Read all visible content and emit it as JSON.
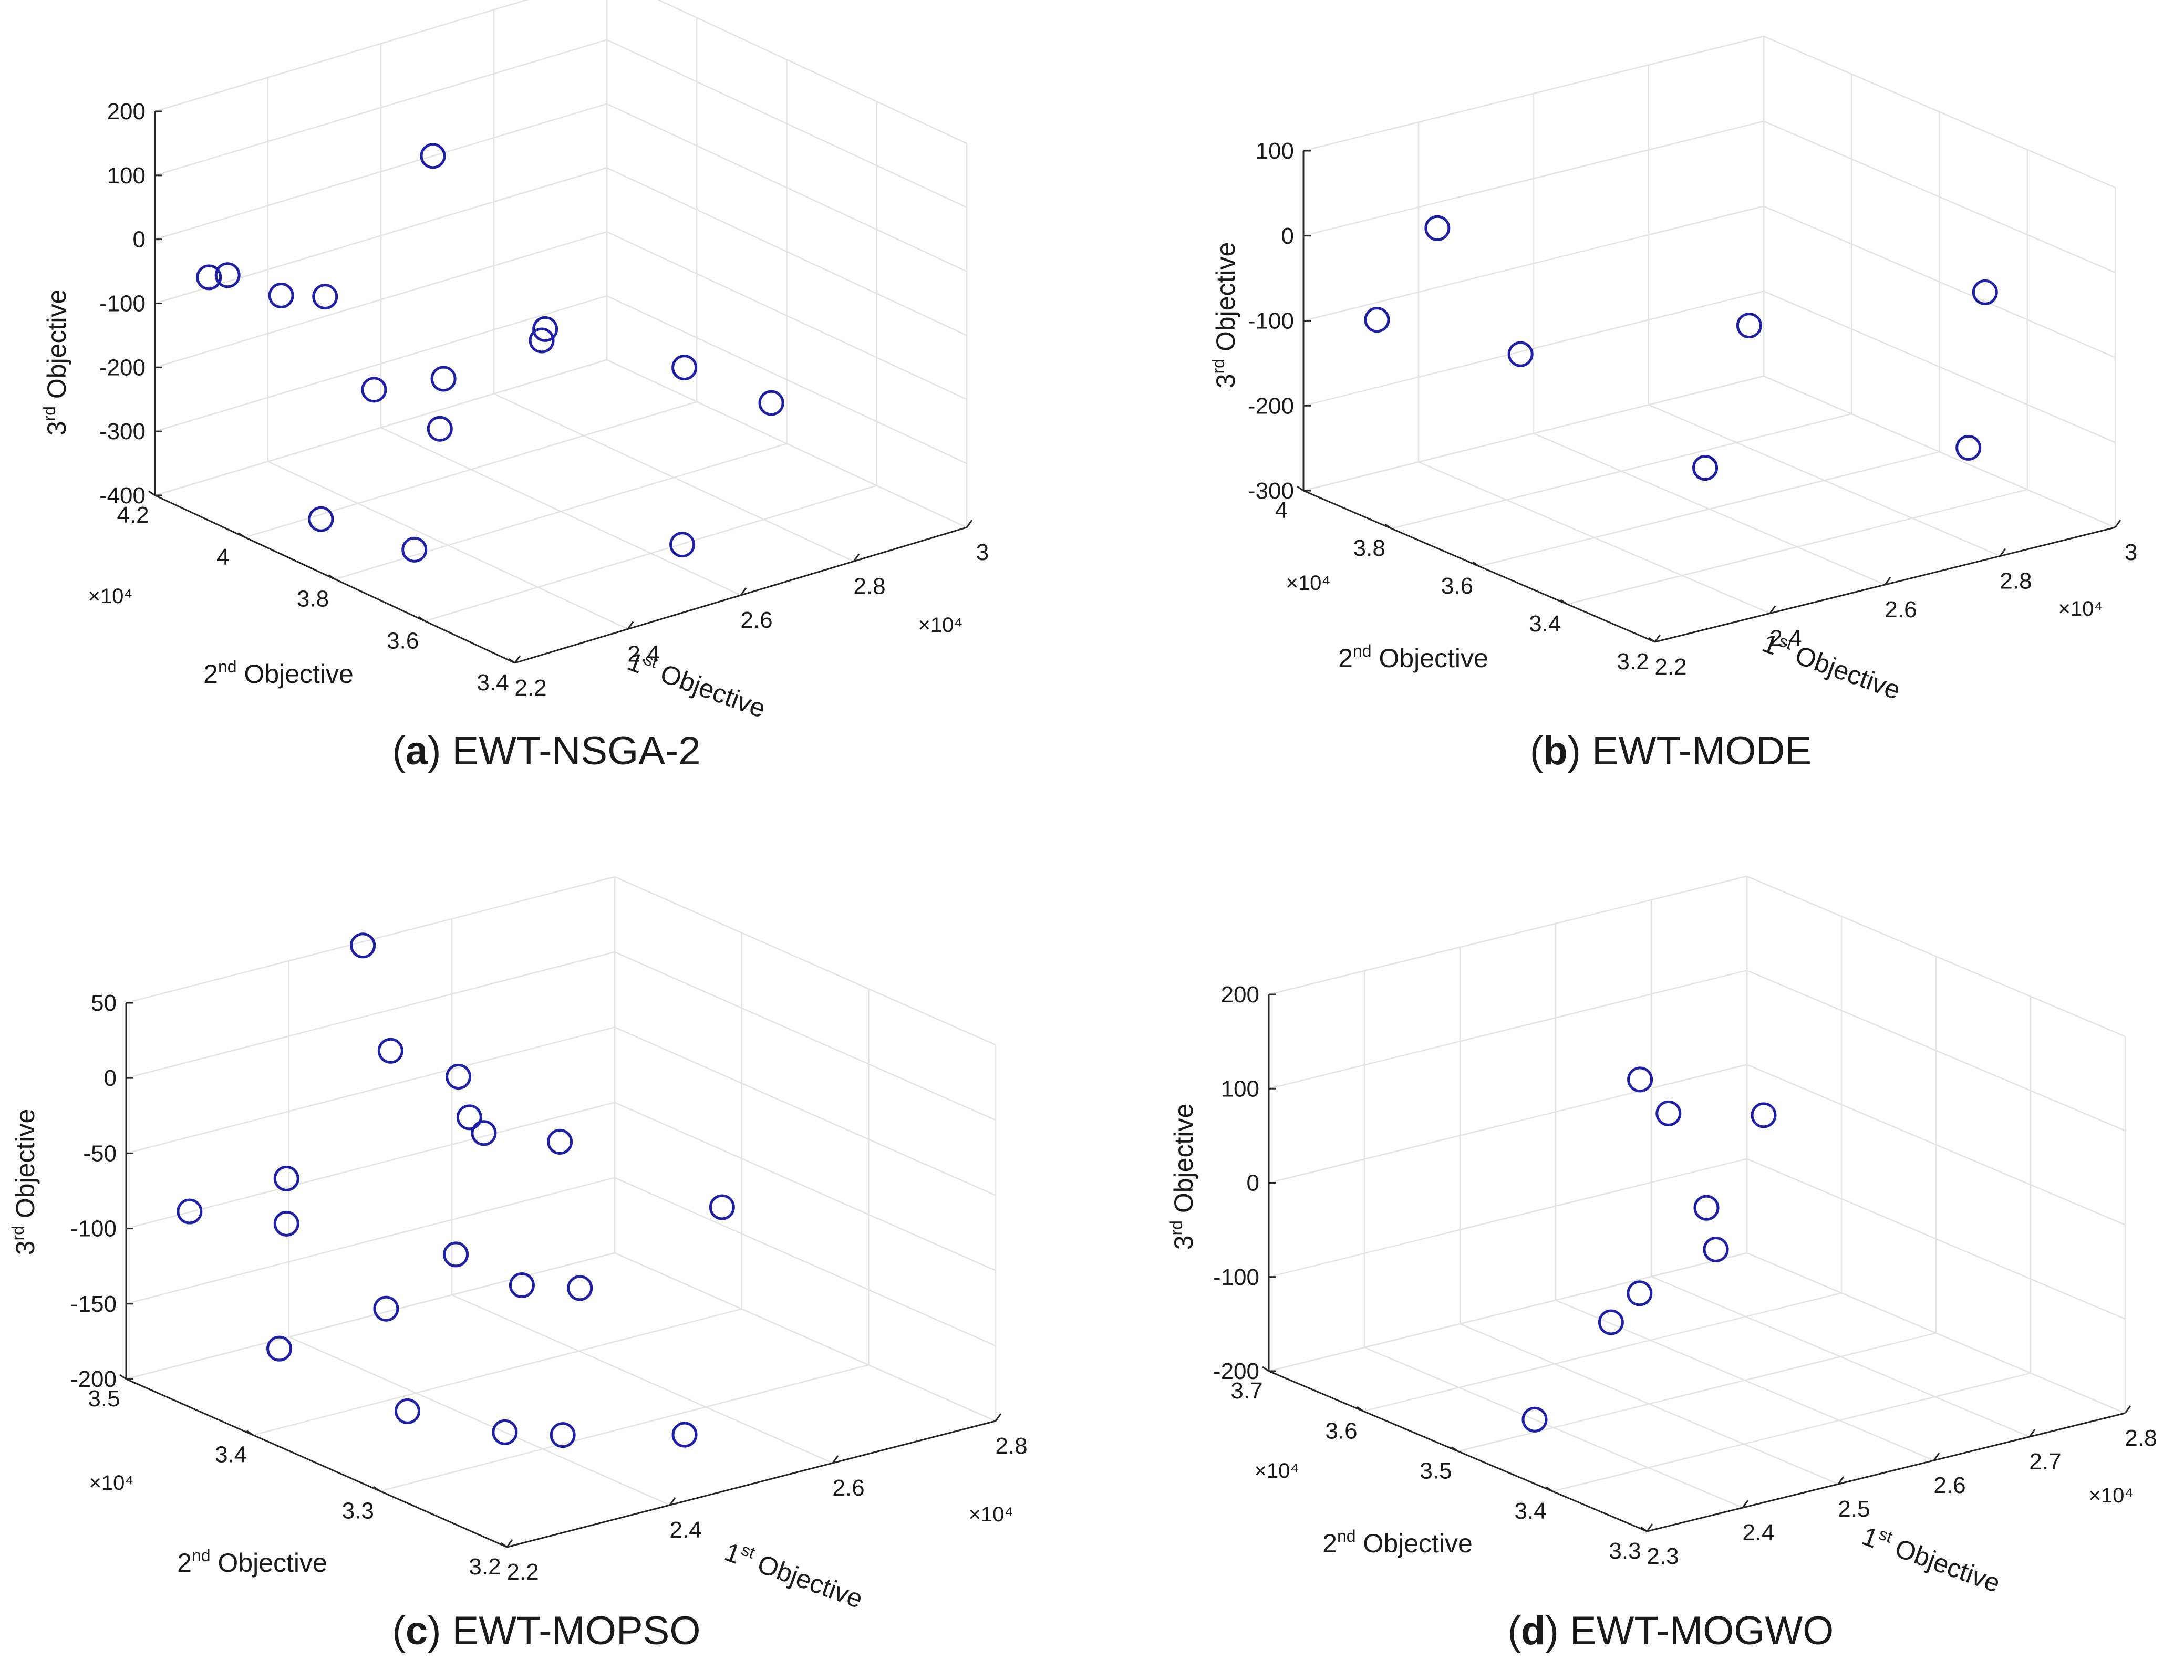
{
  "colors": {
    "marker": "#1f1fa6",
    "axis": "#262626",
    "grid": "#e3e3e3",
    "text": "#1a1a1a"
  },
  "chart_data": [
    {
      "type": "scatter",
      "caption_letter": "a",
      "caption_text": "EWT-NSGA-2",
      "xlabel": "1st Objective",
      "ylabel": "2nd Objective",
      "zlabel": "3rd Objective",
      "x_exponent": "×10⁴",
      "y_exponent": "×10⁴",
      "xlim": [
        22000,
        30000
      ],
      "ylim": [
        34000,
        42000
      ],
      "zlim": [
        -400,
        200
      ],
      "x_ticks": [
        "2.2",
        "2.4",
        "2.6",
        "2.8",
        "3"
      ],
      "y_ticks": [
        "3.4",
        "3.6",
        "3.8",
        "4",
        "4.2"
      ],
      "z_ticks": [
        "-400",
        "-300",
        "-200",
        "-100",
        "0",
        "100",
        "200"
      ],
      "grid": true,
      "points": [
        {
          "x": 22000,
          "y": 40800,
          "z": -20
        },
        {
          "x": 22250,
          "y": 40700,
          "z": -20
        },
        {
          "x": 22800,
          "y": 40200,
          "z": -50
        },
        {
          "x": 23100,
          "y": 39600,
          "z": -40
        },
        {
          "x": 24850,
          "y": 39400,
          "z": 140
        },
        {
          "x": 23250,
          "y": 38700,
          "z": -160
        },
        {
          "x": 24400,
          "y": 38600,
          "z": -170
        },
        {
          "x": 25900,
          "y": 38300,
          "z": -140
        },
        {
          "x": 26200,
          "y": 38600,
          "z": -140
        },
        {
          "x": 27550,
          "y": 37200,
          "z": -190
        },
        {
          "x": 28850,
          "y": 36900,
          "z": -270
        },
        {
          "x": 23500,
          "y": 37550,
          "z": -190
        },
        {
          "x": 22350,
          "y": 38750,
          "z": -340
        },
        {
          "x": 22650,
          "y": 37050,
          "z": -340
        },
        {
          "x": 25800,
          "y": 35050,
          "z": -350
        }
      ]
    },
    {
      "type": "scatter",
      "caption_letter": "b",
      "caption_text": "EWT-MODE",
      "xlabel": "1st Objective",
      "ylabel": "2nd Objective",
      "zlabel": "3rd Objective",
      "x_exponent": "×10⁴",
      "y_exponent": "×10⁴",
      "xlim": [
        22000,
        30000
      ],
      "ylim": [
        32000,
        40000
      ],
      "zlim": [
        -300,
        100
      ],
      "x_ticks": [
        "2.2",
        "2.4",
        "2.6",
        "2.8",
        "3"
      ],
      "y_ticks": [
        "3.2",
        "3.4",
        "3.6",
        "3.8",
        "4"
      ],
      "z_ticks": [
        "-300",
        "-200",
        "-100",
        "0",
        "100"
      ],
      "grid": true,
      "points": [
        {
          "x": 22800,
          "y": 38000,
          "z": 40
        },
        {
          "x": 23100,
          "y": 36500,
          "z": -80
        },
        {
          "x": 22400,
          "y": 38850,
          "z": -80
        },
        {
          "x": 25700,
          "y": 34700,
          "z": -50
        },
        {
          "x": 29800,
          "y": 34700,
          "z": -80
        },
        {
          "x": 24400,
          "y": 34000,
          "z": -180
        },
        {
          "x": 28900,
          "y": 33900,
          "z": -230
        }
      ]
    },
    {
      "type": "scatter",
      "caption_letter": "c",
      "caption_text": "EWT-MOPSO",
      "xlabel": "1st Objective",
      "ylabel": "2nd Objective",
      "zlabel": "3rd Objective",
      "x_exponent": "×10⁴",
      "y_exponent": "×10⁴",
      "xlim": [
        22000,
        28000
      ],
      "ylim": [
        32000,
        35000
      ],
      "zlim": [
        -200,
        50
      ],
      "x_ticks": [
        "2.2",
        "2.4",
        "2.6",
        "2.8"
      ],
      "y_ticks": [
        "3.2",
        "3.3",
        "3.4",
        "3.5"
      ],
      "z_ticks": [
        "-200",
        "-150",
        "-100",
        "-50",
        "0",
        "50"
      ],
      "grid": true,
      "points": [
        {
          "x": 24050,
          "y": 34450,
          "z": 80
        },
        {
          "x": 24000,
          "y": 34200,
          "z": 20
        },
        {
          "x": 24600,
          "y": 34050,
          "z": 0
        },
        {
          "x": 26200,
          "y": 33000,
          "z": -70
        },
        {
          "x": 24500,
          "y": 33900,
          "z": -20
        },
        {
          "x": 24600,
          "y": 33850,
          "z": -30
        },
        {
          "x": 25300,
          "y": 33700,
          "z": -40
        },
        {
          "x": 22000,
          "y": 34500,
          "z": -70
        },
        {
          "x": 22800,
          "y": 34250,
          "z": -50
        },
        {
          "x": 22800,
          "y": 34250,
          "z": -80
        },
        {
          "x": 24100,
          "y": 33750,
          "z": -100
        },
        {
          "x": 24600,
          "y": 33550,
          "z": -120
        },
        {
          "x": 25000,
          "y": 33350,
          "z": -120
        },
        {
          "x": 23400,
          "y": 33850,
          "z": -130
        },
        {
          "x": 22400,
          "y": 34050,
          "z": -150
        },
        {
          "x": 23350,
          "y": 33650,
          "z": -190
        },
        {
          "x": 24000,
          "y": 33300,
          "z": -200
        },
        {
          "x": 24400,
          "y": 33100,
          "z": -200
        },
        {
          "x": 25350,
          "y": 32750,
          "z": -200
        }
      ]
    },
    {
      "type": "scatter",
      "caption_letter": "d",
      "caption_text": "EWT-MOGWO",
      "xlabel": "1st Objective",
      "ylabel": "2nd Objective",
      "zlabel": "3rd Objective",
      "x_exponent": "×10⁴",
      "y_exponent": "×10⁴",
      "xlim": [
        23000,
        28000
      ],
      "ylim": [
        33000,
        37000
      ],
      "zlim": [
        -200,
        200
      ],
      "x_ticks": [
        "2.3",
        "2.4",
        "2.5",
        "2.6",
        "2.7",
        "2.8"
      ],
      "y_ticks": [
        "3.3",
        "3.4",
        "3.5",
        "3.6",
        "3.7"
      ],
      "z_ticks": [
        "-200",
        "-100",
        "0",
        "100",
        "200"
      ],
      "grid": true,
      "points": [
        {
          "x": 25300,
          "y": 35400,
          "z": 120
        },
        {
          "x": 25400,
          "y": 35200,
          "z": 90
        },
        {
          "x": 26000,
          "y": 34800,
          "z": 90
        },
        {
          "x": 25500,
          "y": 34900,
          "z": 0
        },
        {
          "x": 25500,
          "y": 34800,
          "z": -40
        },
        {
          "x": 24900,
          "y": 35000,
          "z": -80
        },
        {
          "x": 24700,
          "y": 35100,
          "z": -110
        },
        {
          "x": 24000,
          "y": 35200,
          "z": -200
        }
      ]
    }
  ]
}
